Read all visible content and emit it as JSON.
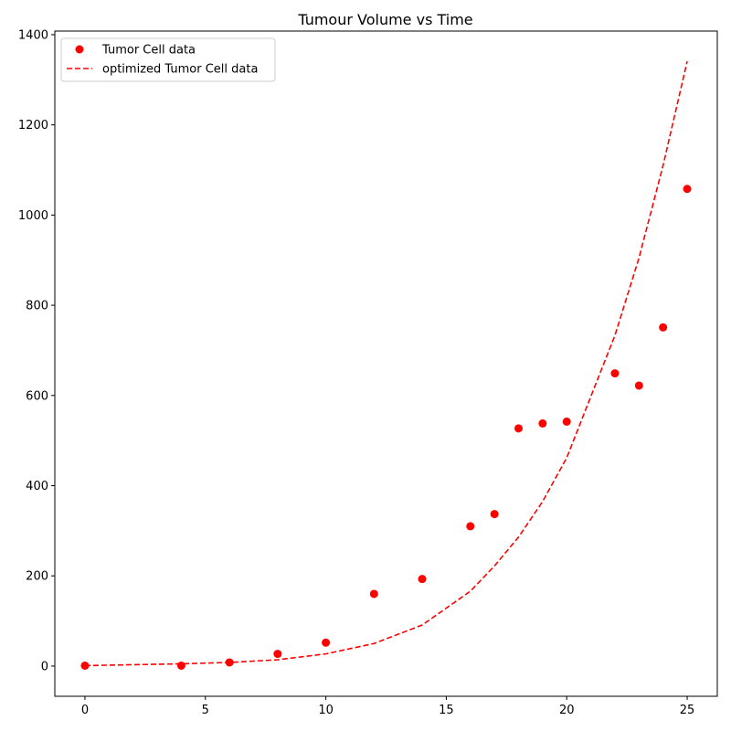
{
  "chart_data": {
    "type": "scatter",
    "title": "Tumour Volume vs Time",
    "xlabel": "",
    "ylabel": "",
    "xlim": [
      -1.25,
      26.25
    ],
    "ylim": [
      -67,
      1408
    ],
    "xticks": [
      0,
      5,
      10,
      15,
      20,
      25
    ],
    "yticks": [
      0,
      200,
      400,
      600,
      800,
      1000,
      1200,
      1400
    ],
    "grid": false,
    "legend_position": "top-left",
    "series": [
      {
        "name": "Tumor Cell data",
        "kind": "points",
        "color": "#ff0000",
        "x": [
          0,
          4,
          6,
          8,
          10,
          12,
          14,
          16,
          17,
          18,
          19,
          20,
          22,
          23,
          24,
          25
        ],
        "y": [
          1,
          1,
          8,
          27,
          52,
          160,
          193,
          310,
          337,
          527,
          538,
          542,
          649,
          622,
          751,
          1058
        ]
      },
      {
        "name": "optimized Tumor Cell data",
        "kind": "dashed-line",
        "color": "#ff0000",
        "x": [
          0,
          4,
          6,
          8,
          10,
          12,
          14,
          16,
          17,
          18,
          19,
          20,
          22,
          23,
          24,
          25
        ],
        "y": [
          1,
          5,
          8,
          14,
          27,
          50,
          91,
          166,
          222,
          286,
          365,
          462,
          733,
          905,
          1110,
          1341
        ]
      }
    ]
  }
}
